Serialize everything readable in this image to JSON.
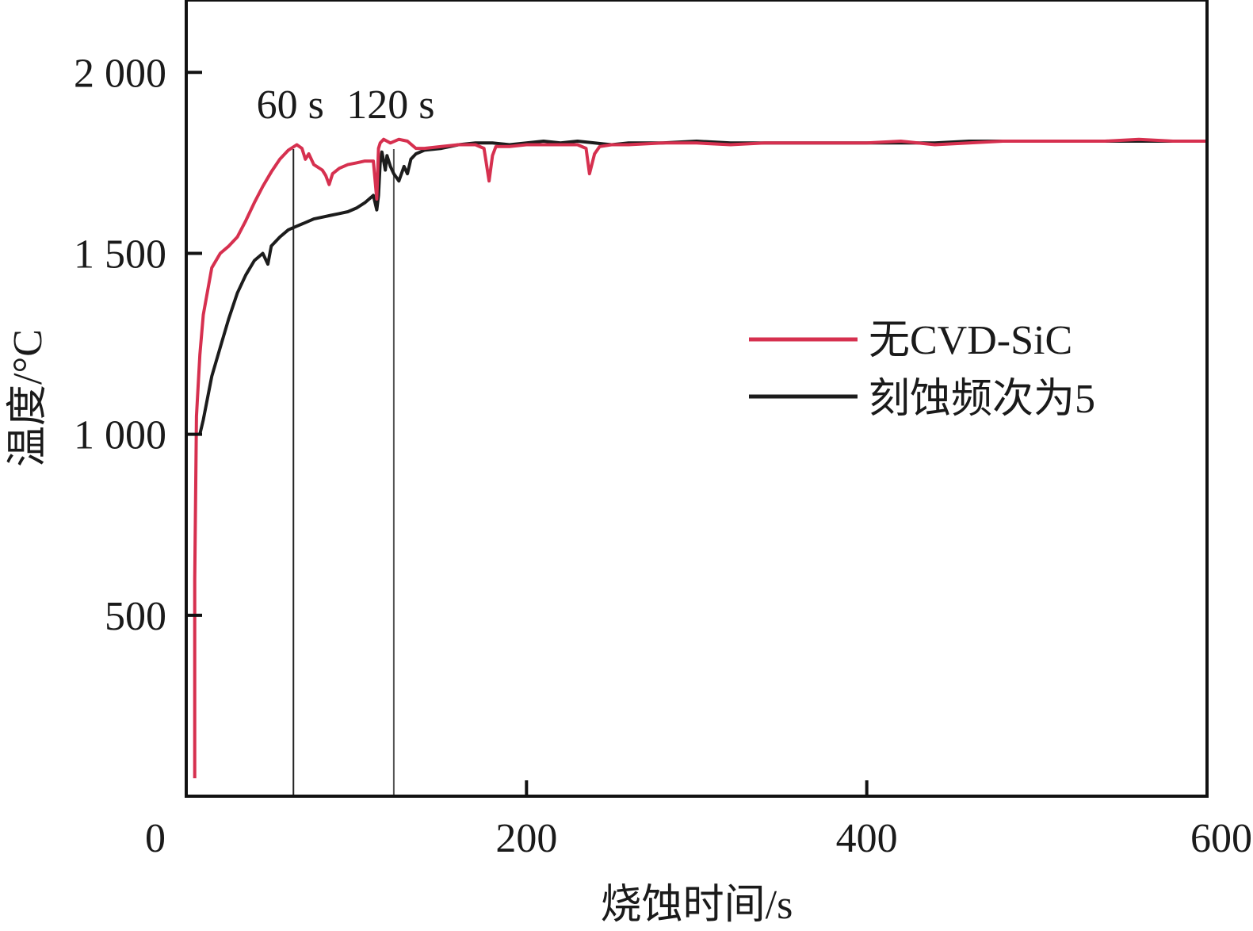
{
  "chart_data": {
    "type": "line",
    "title": "",
    "xlabel": "烧蚀时间/s",
    "ylabel": "温度/°C",
    "xlim": [
      0,
      600
    ],
    "ylim": [
      0,
      2200
    ],
    "x_ticks": [
      0,
      200,
      400,
      600
    ],
    "x_tick_labels": [
      "0",
      "200",
      "400",
      "600"
    ],
    "y_ticks": [
      500,
      1000,
      1500,
      2000
    ],
    "y_tick_labels": [
      "500",
      "1 000",
      "1 500",
      "2 000"
    ],
    "grid": false,
    "legend_position": "right",
    "annotations": [
      {
        "label": "60 s",
        "x": 63
      },
      {
        "label": "120 s",
        "x": 122
      }
    ],
    "series": [
      {
        "name": "无CVD-SiC",
        "color": "#d6304f",
        "x": [
          5,
          5,
          6,
          8,
          10,
          15,
          20,
          25,
          30,
          35,
          40,
          45,
          50,
          55,
          60,
          65,
          68,
          70,
          72,
          75,
          80,
          82,
          84,
          86,
          90,
          95,
          100,
          105,
          110,
          112,
          113,
          114,
          116,
          118,
          120,
          125,
          130,
          135,
          140,
          150,
          160,
          170,
          175,
          178,
          180,
          182,
          190,
          200,
          210,
          220,
          230,
          235,
          237,
          240,
          243,
          250,
          260,
          280,
          300,
          320,
          340,
          360,
          380,
          400,
          420,
          440,
          460,
          480,
          500,
          520,
          540,
          560,
          580,
          600
        ],
        "y": [
          50,
          600,
          1050,
          1220,
          1330,
          1460,
          1500,
          1520,
          1545,
          1590,
          1640,
          1685,
          1725,
          1760,
          1785,
          1800,
          1790,
          1760,
          1775,
          1745,
          1730,
          1715,
          1690,
          1720,
          1735,
          1745,
          1750,
          1755,
          1755,
          1650,
          1790,
          1805,
          1815,
          1810,
          1805,
          1815,
          1810,
          1790,
          1790,
          1795,
          1800,
          1800,
          1790,
          1700,
          1770,
          1795,
          1795,
          1800,
          1800,
          1800,
          1800,
          1790,
          1720,
          1775,
          1795,
          1800,
          1800,
          1805,
          1805,
          1800,
          1805,
          1805,
          1805,
          1805,
          1810,
          1800,
          1805,
          1810,
          1810,
          1810,
          1810,
          1815,
          1810,
          1810
        ]
      },
      {
        "name": "刻蚀频次为5",
        "color": "#1c1c1c",
        "x": [
          8,
          10,
          15,
          20,
          25,
          30,
          35,
          40,
          45,
          48,
          50,
          55,
          60,
          65,
          70,
          75,
          80,
          85,
          90,
          95,
          100,
          105,
          110,
          112,
          113,
          114,
          115,
          117,
          118,
          120,
          122,
          125,
          128,
          130,
          132,
          135,
          140,
          150,
          160,
          170,
          180,
          190,
          200,
          210,
          220,
          230,
          240,
          250,
          260,
          280,
          300,
          320,
          340,
          360,
          380,
          400,
          420,
          440,
          460,
          480,
          500,
          520,
          540,
          560,
          580,
          600
        ],
        "y": [
          1000,
          1040,
          1160,
          1240,
          1320,
          1390,
          1440,
          1480,
          1500,
          1470,
          1520,
          1545,
          1565,
          1575,
          1585,
          1595,
          1600,
          1605,
          1610,
          1615,
          1625,
          1640,
          1660,
          1620,
          1660,
          1750,
          1780,
          1730,
          1770,
          1740,
          1720,
          1700,
          1740,
          1720,
          1760,
          1775,
          1785,
          1790,
          1800,
          1805,
          1805,
          1800,
          1805,
          1810,
          1805,
          1810,
          1805,
          1800,
          1805,
          1805,
          1810,
          1805,
          1805,
          1805,
          1805,
          1805,
          1805,
          1805,
          1810,
          1810,
          1810,
          1810,
          1810,
          1810,
          1810,
          1810
        ]
      }
    ]
  }
}
